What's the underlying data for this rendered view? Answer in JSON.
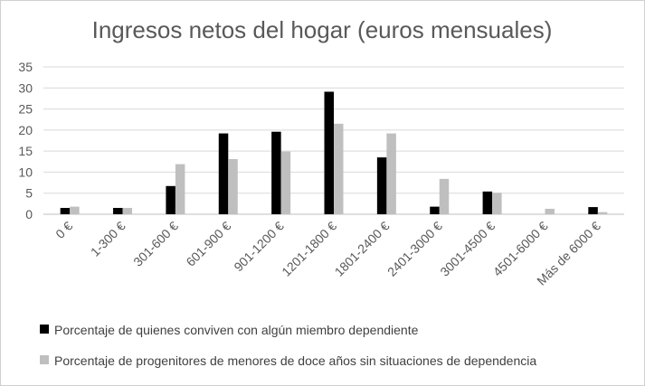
{
  "chart_data": {
    "type": "bar",
    "title": "Ingresos netos del hogar (euros mensuales)",
    "xlabel": "",
    "ylabel": "",
    "ylim": [
      0,
      35
    ],
    "yticks": [
      0,
      5,
      10,
      15,
      20,
      25,
      30,
      35
    ],
    "grid": true,
    "legend_position": "bottom",
    "categories": [
      "0 €",
      "1-300 €",
      "301-600 €",
      "601-900 €",
      "901-1200 €",
      "1201-1800 €",
      "1801-2400 €",
      "2401-3000 €",
      "3001-4500 €",
      "4501-6000 €",
      "Más de 6000 €"
    ],
    "series": [
      {
        "name": "Porcentaje de quienes conviven con algún miembro dependiente",
        "color": "#000000",
        "values": [
          1.5,
          1.5,
          6.7,
          19.2,
          19.6,
          29.1,
          13.5,
          1.8,
          5.4,
          0,
          1.7
        ]
      },
      {
        "name": "Porcentaje de progenitores de menores de doce años sin situaciones de dependencia",
        "color": "#bfbfbf",
        "values": [
          1.8,
          1.5,
          11.9,
          13.1,
          14.9,
          21.5,
          19.2,
          8.4,
          5.1,
          1.3,
          0.5
        ]
      }
    ]
  }
}
